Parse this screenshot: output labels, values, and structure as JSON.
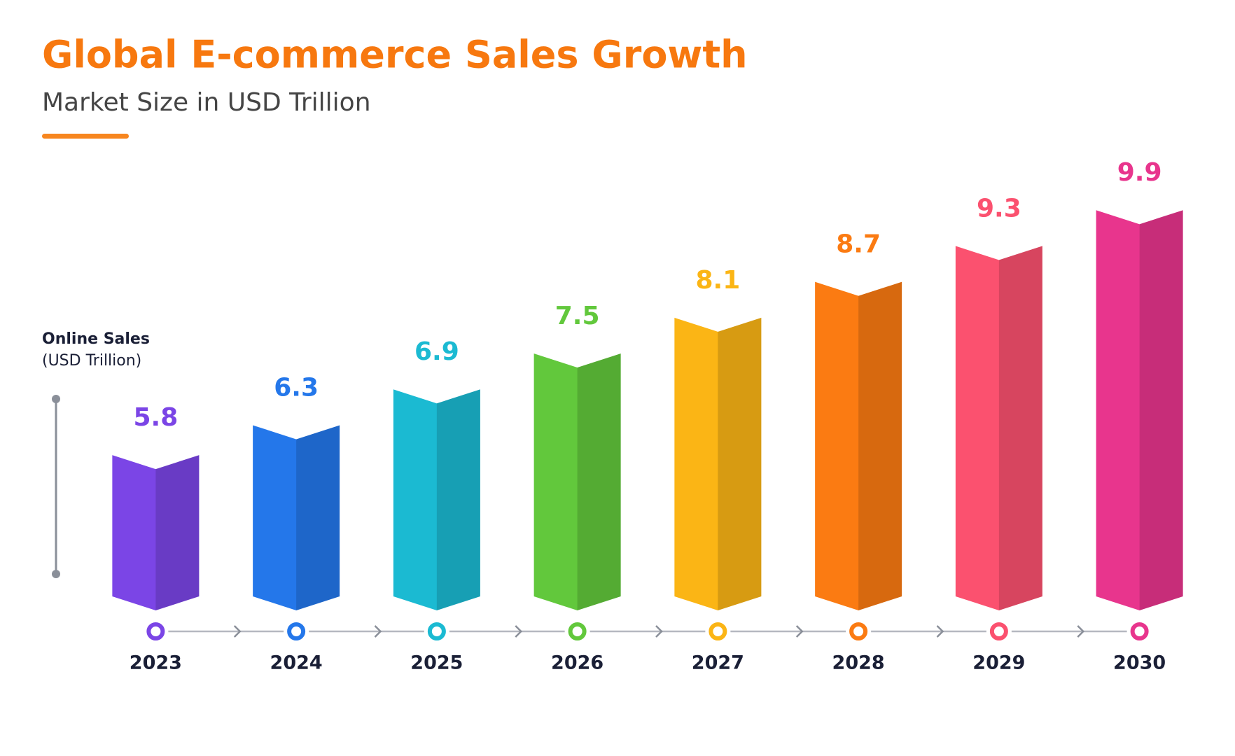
{
  "chart_data": {
    "type": "bar",
    "title": "Global E-commerce Sales Growth",
    "subtitle": "Market Size in USD Trillion",
    "y_label": [
      "Online Sales",
      "(USD Trillion)"
    ],
    "categories": [
      "2023",
      "2024",
      "2025",
      "2026",
      "2027",
      "2028",
      "2029",
      "2030"
    ],
    "values": [
      5.8,
      6.3,
      6.9,
      7.5,
      8.1,
      8.7,
      9.3,
      9.9
    ],
    "colors": [
      "#7b45e6",
      "#2477ea",
      "#1bbad2",
      "#62c83c",
      "#fbb515",
      "#fb7b12",
      "#fb516f",
      "#e8358d"
    ],
    "ylim": [
      3.2,
      10.5
    ]
  }
}
